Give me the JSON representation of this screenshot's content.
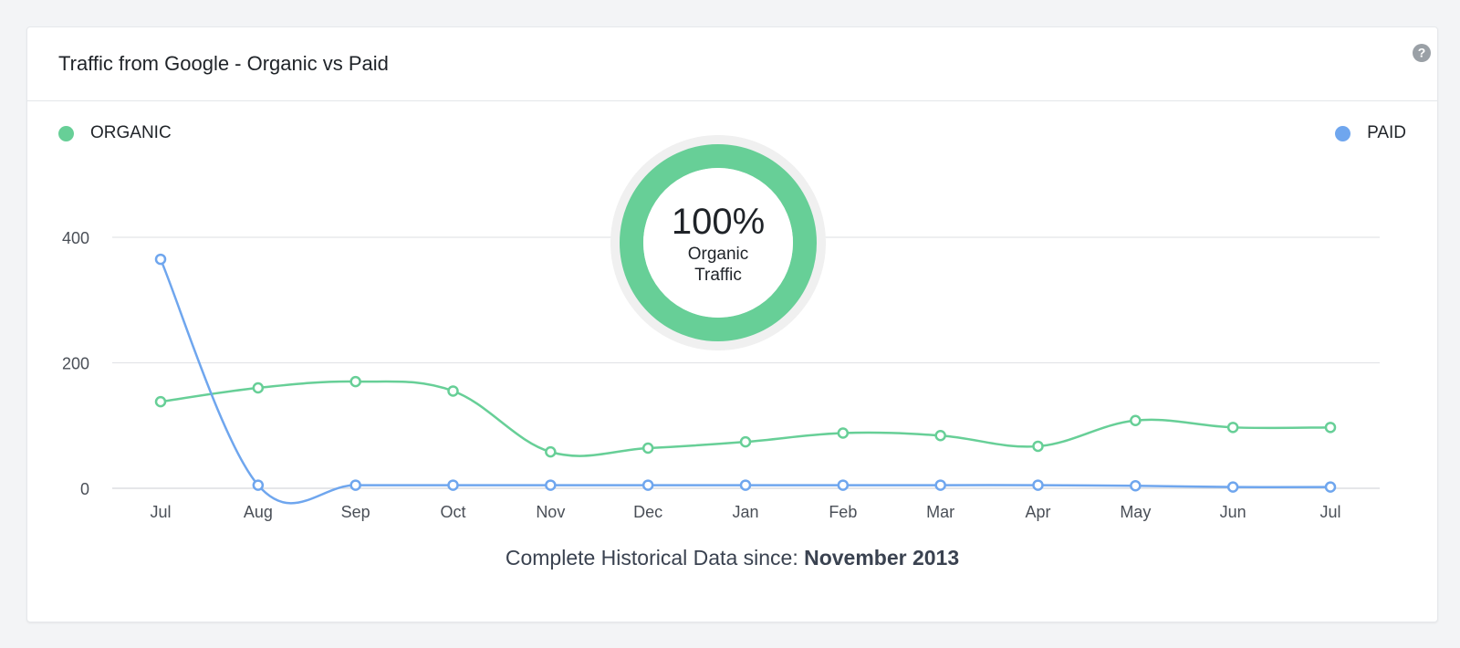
{
  "card": {
    "title": "Traffic from Google - Organic vs Paid",
    "help_icon": "question-circle-icon"
  },
  "legend": {
    "organic_label": "ORGANIC",
    "paid_label": "PAID"
  },
  "donut": {
    "value_label": "100%",
    "line1": "Organic",
    "line2": "Traffic",
    "organic_share": 1.0
  },
  "footer": {
    "prefix": "Complete Historical Data since: ",
    "date": "November 2013"
  },
  "colors": {
    "organic": "#67cf97",
    "paid": "#6fa6ee",
    "grid": "#e3e5e8",
    "axis_text": "#4a4f57",
    "donut_track": "#f0f0f0"
  },
  "chart_data": {
    "type": "line",
    "categories": [
      "Jul",
      "Aug",
      "Sep",
      "Oct",
      "Nov",
      "Dec",
      "Jan",
      "Feb",
      "Mar",
      "Apr",
      "May",
      "Jun",
      "Jul"
    ],
    "series": [
      {
        "name": "ORGANIC",
        "values": [
          138,
          160,
          170,
          155,
          58,
          64,
          74,
          88,
          84,
          67,
          108,
          97,
          97
        ]
      },
      {
        "name": "PAID",
        "values": [
          365,
          5,
          5,
          5,
          5,
          5,
          5,
          5,
          5,
          5,
          4,
          2,
          2
        ]
      }
    ],
    "y_ticks": [
      0,
      200,
      400
    ],
    "ylim": [
      0,
      400
    ],
    "xlabel": "",
    "ylabel": "",
    "grid": true,
    "legend": "top"
  }
}
